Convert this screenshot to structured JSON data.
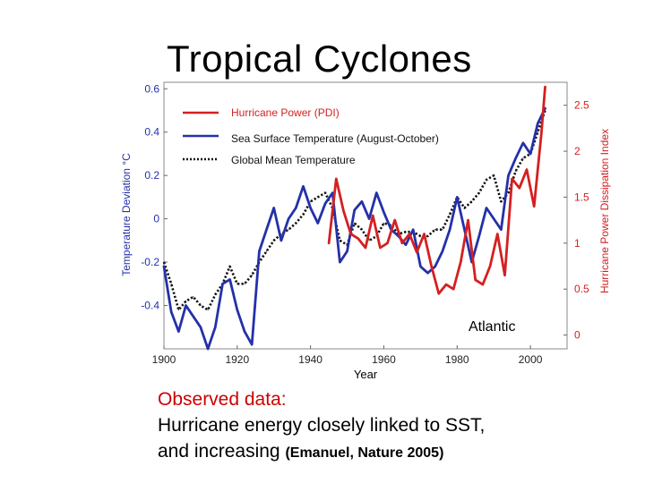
{
  "slide": {
    "title": "Tropical Cyclones",
    "caption_line1": "Observed data:",
    "caption_line2": "Hurricane energy closely linked to SST,",
    "caption_line3": "and increasing",
    "caption_citation": "(Emanuel, Nature 2005)"
  },
  "colors": {
    "pdi": "#d42020",
    "sst": "#2431a8",
    "gmt": "#111111",
    "right_axis": "#d42020",
    "left_axis": "#2431a8",
    "caption_red": "#cc0000"
  },
  "chart_data": {
    "type": "line",
    "title": "",
    "region_label": "Atlantic",
    "xlabel": "Year",
    "ylabel_left": "Temperature Deviation °C",
    "ylabel_right": "Hurricane Power Dissipation Index",
    "xlim": [
      1900,
      2010
    ],
    "ylim_left": [
      -0.6,
      0.63
    ],
    "ylim_right": [
      -0.15,
      2.75
    ],
    "x_ticks": [
      1900,
      1920,
      1940,
      1960,
      1980,
      2000
    ],
    "y_ticks_left": [
      {
        "value": 0.6,
        "label": "0.6"
      },
      {
        "value": 0.4,
        "label": "0.4"
      },
      {
        "value": 0.2,
        "label": "0.2"
      },
      {
        "value": 0,
        "label": "0"
      },
      {
        "value": -0.2,
        "label": "-0.2"
      },
      {
        "value": -0.4,
        "label": "-0.4"
      }
    ],
    "y_ticks_right": [
      {
        "value": 2.5,
        "label": "2.5"
      },
      {
        "value": 2,
        "label": "2"
      },
      {
        "value": 1.5,
        "label": "1.5"
      },
      {
        "value": 1,
        "label": "1"
      },
      {
        "value": 0.5,
        "label": "0.5"
      },
      {
        "value": 0,
        "label": "0"
      }
    ],
    "legend": [
      {
        "name": "Hurricane Power (PDI)",
        "series": "pdi"
      },
      {
        "name": "Sea Surface Temperature (August-October)",
        "series": "sst"
      },
      {
        "name": "Global Mean Temperature",
        "series": "gmt"
      }
    ],
    "series": [
      {
        "id": "sst",
        "name": "Sea Surface Temperature (August-October)",
        "axis": "left",
        "x": [
          1900,
          1902,
          1904,
          1906,
          1908,
          1910,
          1912,
          1914,
          1916,
          1918,
          1920,
          1922,
          1924,
          1926,
          1928,
          1930,
          1932,
          1934,
          1936,
          1938,
          1940,
          1942,
          1944,
          1946,
          1948,
          1950,
          1952,
          1954,
          1956,
          1958,
          1960,
          1962,
          1964,
          1966,
          1968,
          1970,
          1972,
          1974,
          1976,
          1978,
          1980,
          1982,
          1984,
          1986,
          1988,
          1990,
          1992,
          1994,
          1996,
          1998,
          2000,
          2002,
          2004
        ],
        "y": [
          -0.22,
          -0.43,
          -0.52,
          -0.4,
          -0.45,
          -0.5,
          -0.6,
          -0.5,
          -0.3,
          -0.28,
          -0.42,
          -0.52,
          -0.58,
          -0.15,
          -0.05,
          0.05,
          -0.1,
          0.0,
          0.05,
          0.15,
          0.05,
          -0.02,
          0.07,
          0.12,
          -0.2,
          -0.15,
          0.04,
          0.08,
          0.0,
          0.12,
          0.03,
          -0.05,
          -0.08,
          -0.12,
          -0.05,
          -0.22,
          -0.25,
          -0.22,
          -0.15,
          -0.05,
          0.1,
          -0.05,
          -0.2,
          -0.08,
          0.05,
          0.0,
          -0.05,
          0.2,
          0.28,
          0.35,
          0.3,
          0.44,
          0.51
        ]
      },
      {
        "id": "gmt",
        "name": "Global Mean Temperature",
        "axis": "left",
        "x": [
          1900,
          1902,
          1904,
          1906,
          1908,
          1910,
          1912,
          1914,
          1916,
          1918,
          1920,
          1922,
          1924,
          1926,
          1928,
          1930,
          1932,
          1934,
          1936,
          1938,
          1940,
          1942,
          1944,
          1946,
          1948,
          1950,
          1952,
          1954,
          1956,
          1958,
          1960,
          1962,
          1964,
          1966,
          1968,
          1970,
          1972,
          1974,
          1976,
          1978,
          1980,
          1982,
          1984,
          1986,
          1988,
          1990,
          1992,
          1994,
          1996,
          1998,
          2000,
          2002,
          2004
        ],
        "y": [
          -0.2,
          -0.3,
          -0.42,
          -0.38,
          -0.36,
          -0.4,
          -0.42,
          -0.35,
          -0.3,
          -0.22,
          -0.3,
          -0.3,
          -0.26,
          -0.2,
          -0.15,
          -0.1,
          -0.07,
          -0.05,
          -0.02,
          0.02,
          0.08,
          0.1,
          0.12,
          0.05,
          -0.1,
          -0.12,
          -0.02,
          -0.05,
          -0.1,
          -0.08,
          -0.02,
          -0.03,
          -0.07,
          -0.06,
          -0.06,
          -0.08,
          -0.08,
          -0.05,
          -0.05,
          0.02,
          0.1,
          0.05,
          0.08,
          0.12,
          0.18,
          0.2,
          0.08,
          0.12,
          0.22,
          0.28,
          0.3,
          0.4,
          0.5
        ]
      },
      {
        "id": "pdi",
        "name": "Hurricane Power (PDI)",
        "axis": "right",
        "x": [
          1945,
          1947,
          1949,
          1951,
          1953,
          1955,
          1957,
          1959,
          1961,
          1963,
          1965,
          1967,
          1969,
          1971,
          1973,
          1975,
          1977,
          1979,
          1981,
          1983,
          1985,
          1987,
          1989,
          1991,
          1993,
          1995,
          1997,
          1999,
          2001,
          2003,
          2004
        ],
        "y": [
          1.0,
          1.7,
          1.35,
          1.1,
          1.05,
          0.95,
          1.3,
          0.95,
          1.0,
          1.25,
          1.0,
          1.1,
          0.9,
          1.1,
          0.75,
          0.45,
          0.55,
          0.5,
          0.8,
          1.25,
          0.6,
          0.55,
          0.75,
          1.1,
          0.65,
          1.7,
          1.6,
          1.8,
          1.4,
          2.2,
          2.7
        ]
      }
    ]
  }
}
